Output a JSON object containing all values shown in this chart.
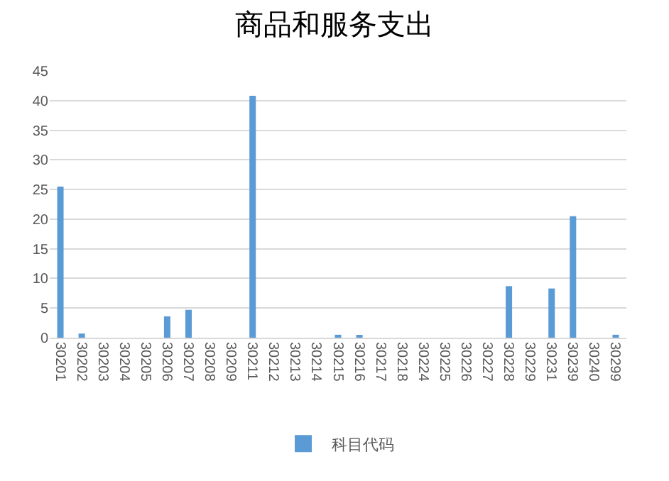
{
  "chart_data": {
    "type": "bar",
    "title": "商品和服务支出",
    "categories": [
      "30201",
      "30202",
      "30203",
      "30204",
      "30205",
      "30206",
      "30207",
      "30208",
      "30209",
      "30211",
      "30212",
      "30213",
      "30214",
      "30215",
      "30216",
      "30217",
      "30218",
      "30224",
      "30225",
      "30226",
      "30227",
      "30228",
      "30229",
      "30231",
      "30239",
      "30240",
      "30299"
    ],
    "series": [
      {
        "name": "科目代码",
        "color": "#5b9bd5",
        "values": [
          25.5,
          0.7,
          0,
          0,
          0,
          3.6,
          4.7,
          0,
          0,
          40.8,
          0,
          0,
          0,
          0.5,
          0.3,
          0,
          0,
          0,
          0,
          0,
          0,
          8.7,
          0,
          8.3,
          20.5,
          0,
          0.5
        ]
      }
    ],
    "ylim": [
      0,
      45
    ],
    "yticks": [
      0,
      5,
      10,
      15,
      20,
      25,
      30,
      35,
      40,
      45
    ],
    "grid": "y",
    "legend": "bottom"
  }
}
